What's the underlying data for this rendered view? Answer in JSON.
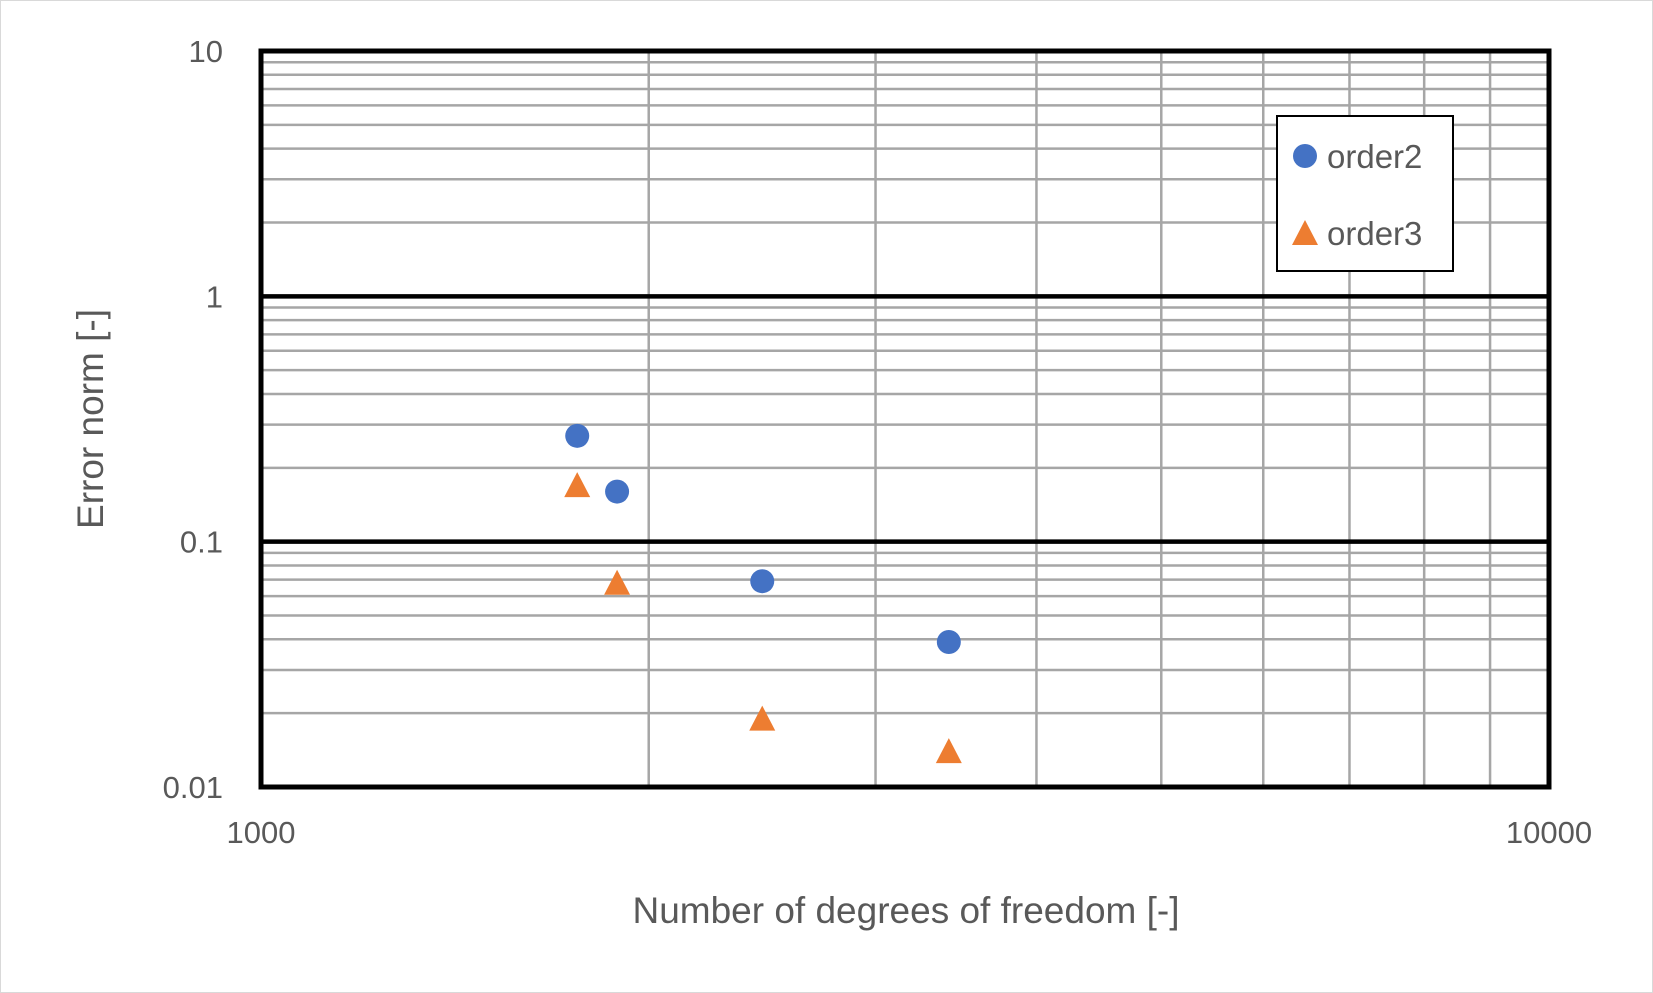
{
  "chart_data": {
    "type": "scatter",
    "title": "",
    "xlabel": "Number of degrees of freedom [-]",
    "ylabel": "Error norm [-]",
    "x_scale": "log",
    "y_scale": "log",
    "xlim": [
      1000,
      10000
    ],
    "ylim": [
      0.01,
      10
    ],
    "x_ticks": [
      1000,
      10000
    ],
    "x_tick_labels": [
      "1000",
      "10000"
    ],
    "y_ticks": [
      0.01,
      0.1,
      1,
      10
    ],
    "y_tick_labels": [
      "0.01",
      "0.1",
      "1",
      "10"
    ],
    "grid": true,
    "legend_position": "top-right",
    "series": [
      {
        "name": "order2",
        "marker": "circle",
        "color": "#4472C4",
        "points": [
          {
            "x": 1760,
            "y": 0.27
          },
          {
            "x": 1890,
            "y": 0.16
          },
          {
            "x": 2450,
            "y": 0.069
          },
          {
            "x": 3420,
            "y": 0.039
          }
        ]
      },
      {
        "name": "order3",
        "marker": "triangle",
        "color": "#ED7D31",
        "points": [
          {
            "x": 1760,
            "y": 0.17
          },
          {
            "x": 1890,
            "y": 0.068
          },
          {
            "x": 2450,
            "y": 0.019
          },
          {
            "x": 3420,
            "y": 0.014
          }
        ]
      }
    ]
  }
}
